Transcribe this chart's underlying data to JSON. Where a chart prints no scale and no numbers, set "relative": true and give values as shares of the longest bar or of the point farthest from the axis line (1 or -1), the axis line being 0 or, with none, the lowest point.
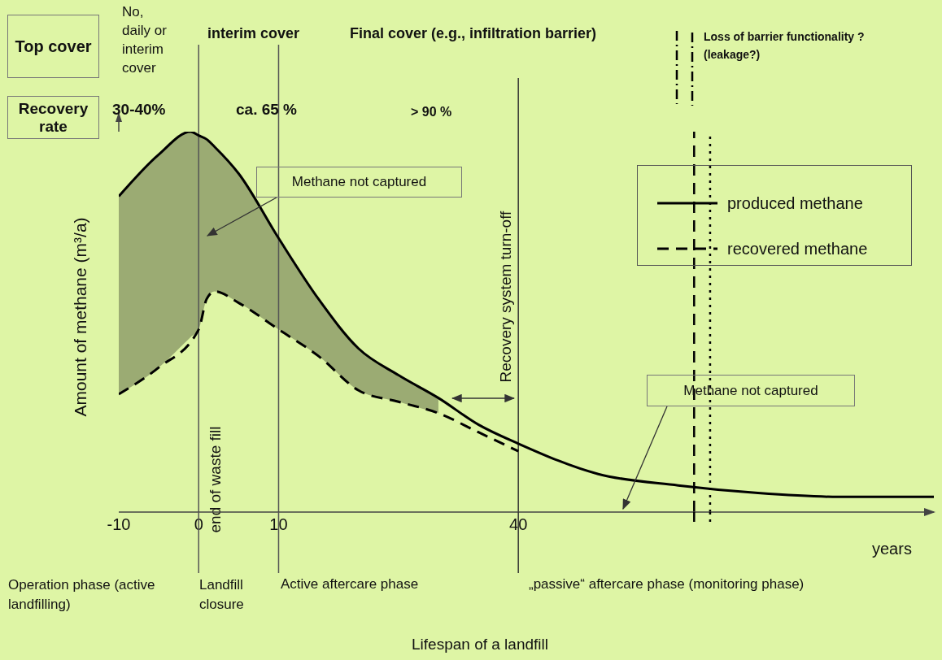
{
  "chart_data": {
    "type": "line",
    "relative": true,
    "ylabel": "Amount of methane  (m³/a)",
    "xlim": [
      -10,
      92
    ],
    "xticks": [
      -10,
      0,
      10,
      40
    ],
    "legend": "top right",
    "grid": false,
    "series": [
      {
        "name": "produced methane",
        "color": "#000000",
        "line_style": "solid",
        "x": [
          -10,
          -5,
          -1,
          0,
          1,
          2,
          5,
          10,
          15,
          20,
          25,
          30,
          35,
          40,
          50,
          60,
          70,
          80,
          92
        ],
        "values": [
          0.83,
          0.94,
          1,
          0.99,
          0.98,
          0.96,
          0.89,
          0.72,
          0.56,
          0.43,
          0.36,
          0.3,
          0.23,
          0.18,
          0.1,
          0.07,
          0.05,
          0.04,
          0.04
        ],
        "lower": [
          0.31,
          0.38,
          0.46,
          0.48,
          0.56,
          0.58,
          0.55,
          0.48,
          0.41,
          0.32,
          0.29,
          0.26,
          null,
          null,
          null,
          null,
          null,
          null,
          null
        ],
        "upper": [
          0.83,
          0.94,
          1,
          0.99,
          0.98,
          0.96,
          0.89,
          0.72,
          0.56,
          0.43,
          0.36,
          0.3,
          null,
          null,
          null,
          null,
          null,
          null,
          null
        ]
      },
      {
        "name": "recovered methane",
        "color": "#000000",
        "line_style": "dashed",
        "x": [
          -10,
          -5,
          0,
          1,
          2,
          5,
          10,
          15,
          20,
          25,
          30,
          35,
          40
        ],
        "values": [
          0.31,
          0.38,
          0.48,
          0.56,
          0.58,
          0.55,
          0.48,
          0.41,
          0.32,
          0.29,
          0.26,
          0.21,
          0.16
        ]
      }
    ],
    "ref_lines": [
      {
        "axis": "x",
        "value": 0,
        "label": "end of waste fill",
        "color": "#555555",
        "line_style": "solid"
      },
      {
        "axis": "x",
        "value": 10,
        "label": null,
        "color": "#555555",
        "line_style": "solid"
      },
      {
        "axis": "x",
        "value": 40,
        "label": "Recovery system turn-off",
        "color": "#333333",
        "line_style": "solid"
      },
      {
        "axis": "x",
        "value": 62,
        "label": null,
        "color": "#000000",
        "line_style": "dashed"
      },
      {
        "axis": "x",
        "value": 64,
        "label": null,
        "color": "#000000",
        "line_style": "dotted"
      }
    ],
    "annotations": [
      "Top cover",
      "No, daily or interim cover",
      "interim cover",
      "Final cover (e.g., infiltration barrier)",
      "Loss of barrier functionality ? (leakage?)",
      "Recovery rate",
      "30-40%",
      "ca. 65 %",
      "> 90 %",
      "Methane not captured",
      "Methane not captured",
      "years",
      "Operation phase (active landfilling)",
      "Landfill closure",
      "Active aftercare phase",
      "„passive“ aftercare  phase (monitoring phase)",
      "Lifespan of a landfill"
    ]
  }
}
